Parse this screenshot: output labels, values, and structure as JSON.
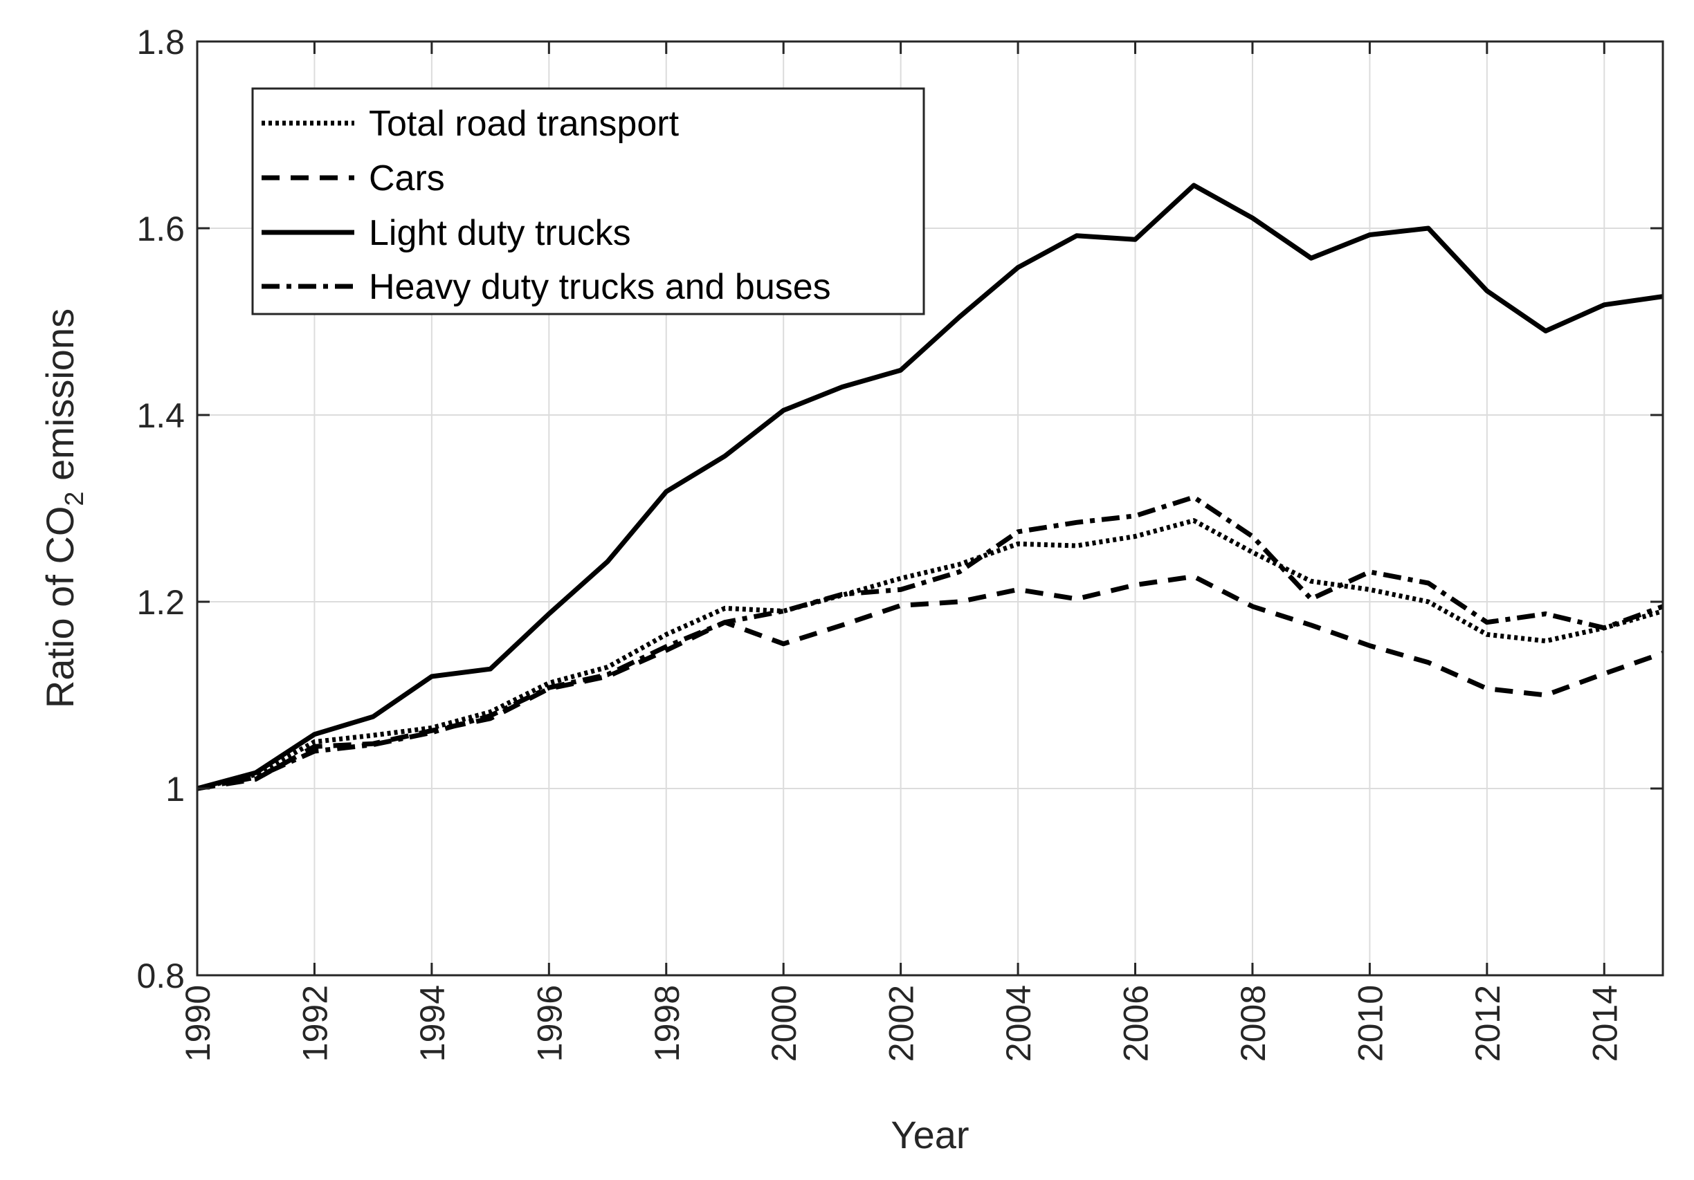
{
  "chart_data": {
    "type": "line",
    "title": "",
    "xlabel": "Year",
    "ylabel_main": "Ratio of CO",
    "ylabel_subscript": "2",
    "ylabel_tail": " emissions",
    "xlim": [
      1990,
      2015
    ],
    "ylim": [
      0.8,
      1.8
    ],
    "grid": true,
    "legend_position": "top-left",
    "x_ticks": [
      1990,
      1992,
      1994,
      1996,
      1998,
      2000,
      2002,
      2004,
      2006,
      2008,
      2010,
      2012,
      2014
    ],
    "x_tick_labels": [
      "1990",
      "1992",
      "1994",
      "1996",
      "1998",
      "2000",
      "2002",
      "2004",
      "2006",
      "2008",
      "2010",
      "2012",
      "2014"
    ],
    "y_ticks": [
      0.8,
      1.0,
      1.2,
      1.4,
      1.6,
      1.8
    ],
    "y_tick_labels": [
      "0.8",
      "1",
      "1.2",
      "1.4",
      "1.6",
      "1.8"
    ],
    "x": [
      1990,
      1991,
      1992,
      1993,
      1994,
      1995,
      1996,
      1997,
      1998,
      1999,
      2000,
      2001,
      2002,
      2003,
      2004,
      2005,
      2006,
      2007,
      2008,
      2009,
      2010,
      2011,
      2012,
      2013,
      2014,
      2015
    ],
    "series": [
      {
        "name": "Total road transport",
        "style": "dotted",
        "color": "#000000",
        "values": [
          1.0,
          1.015,
          1.05,
          1.057,
          1.065,
          1.082,
          1.113,
          1.13,
          1.165,
          1.193,
          1.19,
          1.207,
          1.225,
          1.24,
          1.262,
          1.26,
          1.27,
          1.287,
          1.253,
          1.222,
          1.213,
          1.2,
          1.165,
          1.158,
          1.172,
          1.19
        ]
      },
      {
        "name": "Cars",
        "style": "dashed",
        "color": "#000000",
        "values": [
          1.0,
          1.01,
          1.045,
          1.048,
          1.062,
          1.075,
          1.107,
          1.12,
          1.148,
          1.178,
          1.155,
          1.175,
          1.196,
          1.2,
          1.213,
          1.203,
          1.218,
          1.227,
          1.195,
          1.175,
          1.153,
          1.135,
          1.107,
          1.1,
          1.123,
          1.145
        ]
      },
      {
        "name": "Light duty trucks",
        "style": "solid",
        "color": "#000000",
        "values": [
          1.0,
          1.017,
          1.058,
          1.077,
          1.12,
          1.128,
          1.187,
          1.243,
          1.318,
          1.356,
          1.405,
          1.43,
          1.448,
          1.505,
          1.558,
          1.592,
          1.588,
          1.646,
          1.611,
          1.568,
          1.593,
          1.6,
          1.533,
          1.49,
          1.518,
          1.527
        ]
      },
      {
        "name": "Heavy duty trucks and buses",
        "style": "dashdot",
        "color": "#000000",
        "values": [
          1.0,
          1.012,
          1.04,
          1.047,
          1.06,
          1.078,
          1.108,
          1.122,
          1.152,
          1.178,
          1.19,
          1.208,
          1.213,
          1.232,
          1.275,
          1.285,
          1.292,
          1.312,
          1.27,
          1.203,
          1.232,
          1.22,
          1.178,
          1.187,
          1.172,
          1.195
        ]
      }
    ]
  }
}
